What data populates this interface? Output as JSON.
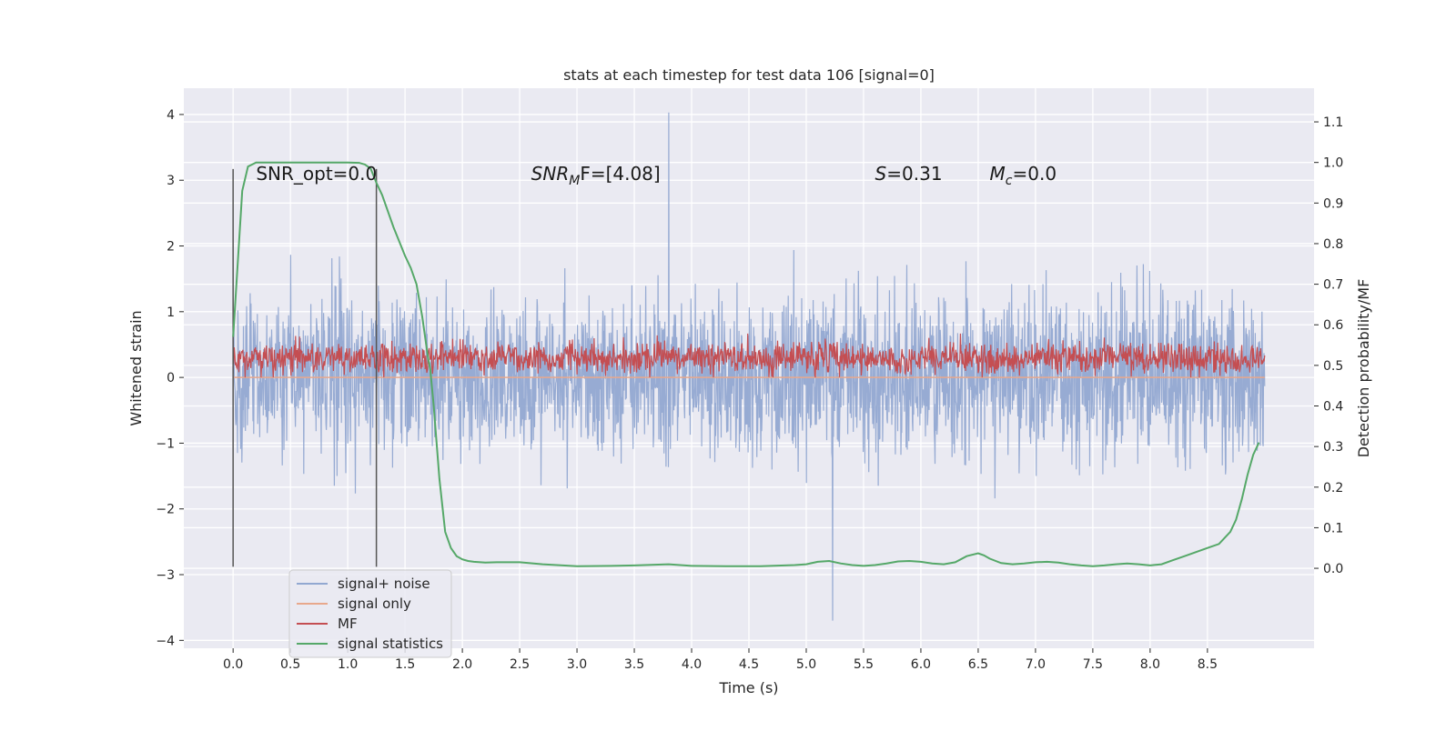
{
  "chart_data": {
    "type": "line",
    "title": "stats at each timestep for test data 106 [signal=0]",
    "xlabel": "Time (s)",
    "ylabel_left": "Whitened strain",
    "ylabel_right": "Detection probability/MF",
    "xlim": [
      -0.43,
      9.43
    ],
    "ylim_left": [
      -4.12,
      4.4
    ],
    "ylim_right": [
      -0.197,
      1.183
    ],
    "x_ticks": [
      0.0,
      0.5,
      1.0,
      1.5,
      2.0,
      2.5,
      3.0,
      3.5,
      4.0,
      4.5,
      5.0,
      5.5,
      6.0,
      6.5,
      7.0,
      7.5,
      8.0,
      8.5
    ],
    "x_tick_labels": [
      "0.0",
      "0.5",
      "1.0",
      "1.5",
      "2.0",
      "2.5",
      "3.0",
      "3.5",
      "4.0",
      "4.5",
      "5.0",
      "5.5",
      "6.0",
      "6.5",
      "7.0",
      "7.5",
      "8.0",
      "8.5"
    ],
    "y_left_ticks": [
      4,
      3,
      2,
      1,
      0,
      -1,
      -2,
      -3,
      -4
    ],
    "y_left_tick_labels": [
      "4",
      "3",
      "2",
      "1",
      "0",
      "−1",
      "−2",
      "−3",
      "−4"
    ],
    "y_right_ticks": [
      1.1,
      1.0,
      0.9,
      0.8,
      0.7,
      0.6,
      0.5,
      0.4,
      0.3,
      0.2,
      0.1,
      0.0
    ],
    "y_right_tick_labels": [
      "1.1",
      "1.0",
      "0.9",
      "0.8",
      "0.7",
      "0.6",
      "0.5",
      "0.4",
      "0.3",
      "0.2",
      "0.1",
      "0.0"
    ],
    "vlines": [
      {
        "x": 0.0,
        "ymin": -2.88,
        "ymax": 3.17
      },
      {
        "x": 1.25,
        "ymin": -2.88,
        "ymax": 3.17
      }
    ],
    "annotations": {
      "snr_opt": {
        "label": "SNR_opt=0.0",
        "x": 0.2,
        "y": 3.1
      },
      "snr_mf": {
        "label": "SNR",
        "sub": "M",
        "suffix": "F=[4.08]",
        "x": 2.6,
        "y": 3.1
      },
      "s": {
        "label": "S",
        "suffix": "=0.31",
        "x": 5.6,
        "y": 3.1
      },
      "mc": {
        "label": "M",
        "sub": "c",
        "suffix": "=0.0",
        "x": 6.6,
        "y": 3.1
      }
    },
    "series": [
      {
        "name": "signal+ noise",
        "color": "#92a8d1",
        "description": "whitened noisy strain, x range 0 to 9 s, envelope roughly -2.9 to 3.4, extremes -3.7 at x=5.23 and 4.03 at x=3.8",
        "x_range": [
          0.0,
          9.0
        ],
        "envelope": [
          -2.9,
          3.4
        ],
        "extremes": [
          {
            "x": 5.23,
            "y": -3.7
          },
          {
            "x": 3.8,
            "y": 4.03
          }
        ]
      },
      {
        "name": "signal only",
        "color": "#e8a88c",
        "x": [
          0.0,
          9.0
        ],
        "y": [
          0.0,
          0.0
        ]
      },
      {
        "name": "MF",
        "color": "#c44e52",
        "description": "matched filter output, x range 0 to 9 s, values roughly 0.0 to 0.97",
        "x_range": [
          0.0,
          9.0
        ],
        "envelope": [
          0.0,
          0.97
        ]
      },
      {
        "name": "signal statistics",
        "color": "#55a868",
        "axis": "right",
        "x": [
          0.0,
          0.08,
          0.13,
          0.2,
          0.3,
          0.5,
          0.8,
          1.0,
          1.1,
          1.15,
          1.2,
          1.25,
          1.3,
          1.4,
          1.5,
          1.55,
          1.6,
          1.65,
          1.7,
          1.72,
          1.75,
          1.8,
          1.85,
          1.9,
          1.95,
          2.0,
          2.05,
          2.1,
          2.2,
          2.3,
          2.5,
          2.7,
          3.0,
          3.3,
          3.5,
          3.8,
          4.0,
          4.3,
          4.6,
          4.9,
          5.0,
          5.1,
          5.2,
          5.3,
          5.4,
          5.5,
          5.6,
          5.7,
          5.8,
          5.9,
          6.0,
          6.1,
          6.2,
          6.3,
          6.4,
          6.5,
          6.55,
          6.6,
          6.7,
          6.8,
          6.9,
          7.0,
          7.1,
          7.2,
          7.3,
          7.4,
          7.5,
          7.6,
          7.7,
          7.8,
          7.9,
          8.0,
          8.1,
          8.2,
          8.3,
          8.4,
          8.5,
          8.6,
          8.7,
          8.75,
          8.8,
          8.85,
          8.9,
          8.95
        ],
        "y": [
          0.57,
          0.93,
          0.99,
          1.0,
          1.0,
          1.0,
          1.0,
          1.0,
          0.999,
          0.995,
          0.985,
          0.95,
          0.92,
          0.84,
          0.77,
          0.74,
          0.7,
          0.62,
          0.52,
          0.49,
          0.4,
          0.22,
          0.09,
          0.05,
          0.03,
          0.022,
          0.018,
          0.016,
          0.014,
          0.015,
          0.015,
          0.01,
          0.005,
          0.006,
          0.007,
          0.01,
          0.006,
          0.005,
          0.005,
          0.008,
          0.01,
          0.016,
          0.018,
          0.012,
          0.008,
          0.006,
          0.008,
          0.012,
          0.017,
          0.018,
          0.016,
          0.012,
          0.01,
          0.015,
          0.03,
          0.037,
          0.032,
          0.024,
          0.013,
          0.01,
          0.012,
          0.015,
          0.016,
          0.014,
          0.01,
          0.007,
          0.005,
          0.007,
          0.01,
          0.012,
          0.01,
          0.007,
          0.01,
          0.02,
          0.03,
          0.04,
          0.05,
          0.06,
          0.09,
          0.12,
          0.17,
          0.23,
          0.28,
          0.31
        ]
      }
    ],
    "legend": {
      "position": "lower-left",
      "entries": [
        {
          "label": "signal+ noise",
          "color": "#92a8d1"
        },
        {
          "label": "signal only",
          "color": "#e8a88c"
        },
        {
          "label": "MF",
          "color": "#c44e52"
        },
        {
          "label": "signal statistics",
          "color": "#55a868"
        }
      ]
    },
    "grid": true,
    "facecolor": "#eaeaf2"
  }
}
